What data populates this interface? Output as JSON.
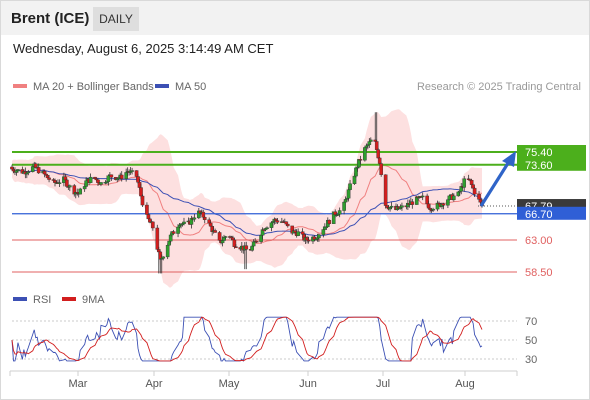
{
  "header": {
    "instrument": "Brent (ICE)",
    "timeframe": "DAILY"
  },
  "timestamp": "Wednesday, August 6, 2025 3:14:49 AM CET",
  "legend": {
    "ma20_bollinger": "MA 20 + Bollinger Bands",
    "ma50": "MA 50",
    "credit": "Research © 2025 Trading Central"
  },
  "rsi_legend": {
    "rsi": "RSI",
    "ma9": "9MA"
  },
  "colors": {
    "up": "#2e9e2e",
    "down": "#d21e1e",
    "band": "#fde0e0",
    "ma20": "#f08080",
    "ma50": "#3c50b4",
    "resistance": "#4caf1c",
    "support": "#2f5fd6",
    "level": "#e06060",
    "arrow": "#2f64c8"
  },
  "chart_data": [
    {
      "type": "candlestick",
      "title": "Brent (ICE)",
      "xlabel": "",
      "ylabel": "",
      "x_ticks": [
        "Mar",
        "Apr",
        "May",
        "Jun",
        "Jul",
        "Aug"
      ],
      "ylim": [
        57,
        82
      ],
      "grid": false,
      "legend": "top-left",
      "series": [
        {
          "name": "MA 20 + Bollinger Bands"
        },
        {
          "name": "MA 50"
        }
      ],
      "levels": [
        {
          "label": "75.40",
          "value": 75.4,
          "kind": "resistance"
        },
        {
          "label": "73.60",
          "value": 73.6,
          "kind": "resistance"
        },
        {
          "label": "67.79",
          "value": 67.79,
          "kind": "last"
        },
        {
          "label": "66.70",
          "value": 66.7,
          "kind": "support"
        },
        {
          "label": "63.00",
          "value": 63.0,
          "kind": "level"
        },
        {
          "label": "58.50",
          "value": 58.5,
          "kind": "level"
        }
      ]
    },
    {
      "type": "line",
      "title": "",
      "series": [
        {
          "name": "RSI"
        },
        {
          "name": "9MA"
        }
      ],
      "y_ticks": [
        "70",
        "50",
        "30"
      ],
      "ylim": [
        20,
        80
      ]
    }
  ]
}
